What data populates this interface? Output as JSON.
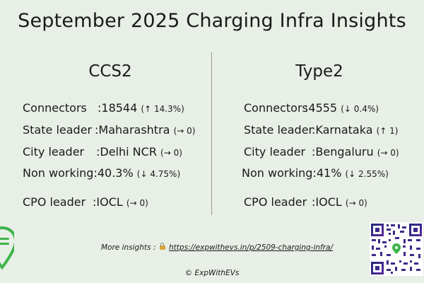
{
  "title": "September 2025 Charging Infra Insights",
  "ccs2": {
    "heading": "CCS2",
    "rows": [
      {
        "label": "Connectors",
        "sep": " : ",
        "value": "18544",
        "change": "(↑ 14.3%)"
      },
      {
        "label": "State leader",
        "sep": " : ",
        "value": "Maharashtra",
        "change": "(→ 0)"
      },
      {
        "label": "City leader",
        "sep": " : ",
        "value": "Delhi NCR",
        "change": "(→ 0)"
      },
      {
        "label": "Non working",
        "sep": " : ",
        "value": "40.3%",
        "change": "(↓ 4.75%)"
      },
      {
        "label": "CPO leader",
        "sep": " : ",
        "value": "IOCL",
        "change": "(→ 0)"
      }
    ]
  },
  "type2": {
    "heading": "Type2",
    "rows": [
      {
        "label": "Connectors",
        "sep": " : ",
        "value": "4555",
        "change": "(↓ 0.4%)"
      },
      {
        "label": "State leader",
        "sep": " : ",
        "value": "Karnataka",
        "change": "(↑ 1)"
      },
      {
        "label": "City leader",
        "sep": " : ",
        "value": "Bengaluru",
        "change": "(→ 0)"
      },
      {
        "label": "Non working",
        "sep": " : ",
        "value": "41%",
        "change": "(↓ 2.55%)"
      },
      {
        "label": "CPO leader",
        "sep": " : ",
        "value": "IOCL",
        "change": "(→ 0)"
      }
    ]
  },
  "footer": {
    "more_label": "More insights :",
    "link": "https://expwithevs.in/p/2509-charging-infra/",
    "copyright": "© ExpWithEVs"
  },
  "icons": {
    "logo": "plug-pin-logo-icon",
    "lock": "lock-icon",
    "qr": "qr-code-icon"
  },
  "colors": {
    "background": "#e8efe6",
    "logo": "#3db54a"
  }
}
